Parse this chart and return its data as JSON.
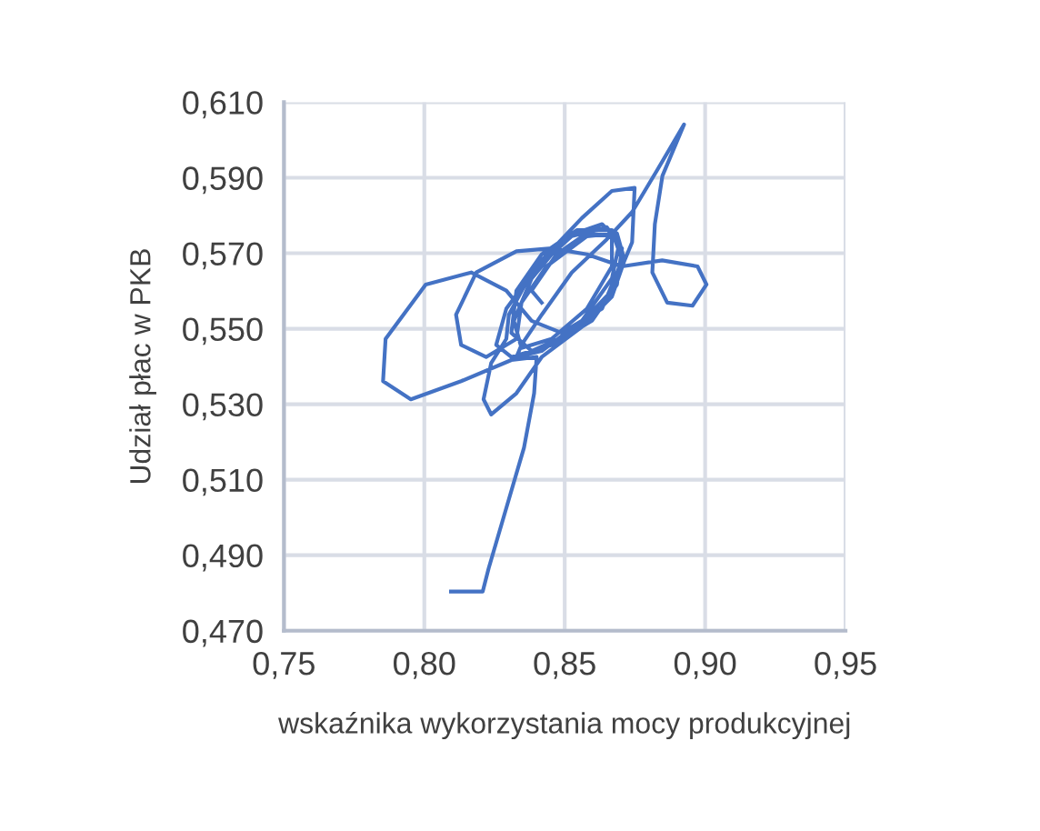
{
  "chart_data": {
    "type": "line",
    "xlabel": "wskaźnika wykorzystania mocy produkcyjnej",
    "ylabel": "Udział płac w PKB",
    "xlim": [
      0.75,
      0.95
    ],
    "ylim": [
      0.47,
      0.61
    ],
    "xticks": [
      {
        "value": 0.75,
        "label": "0,75"
      },
      {
        "value": 0.8,
        "label": "0,80"
      },
      {
        "value": 0.85,
        "label": "0,85"
      },
      {
        "value": 0.9,
        "label": "0,90"
      },
      {
        "value": 0.95,
        "label": "0,95"
      }
    ],
    "yticks": [
      {
        "value": 0.47,
        "label": "0,470"
      },
      {
        "value": 0.49,
        "label": "0,490"
      },
      {
        "value": 0.51,
        "label": "0,510"
      },
      {
        "value": 0.53,
        "label": "0,530"
      },
      {
        "value": 0.55,
        "label": "0,550"
      },
      {
        "value": 0.57,
        "label": "0,570"
      },
      {
        "value": 0.59,
        "label": "0,590"
      },
      {
        "value": 0.61,
        "label": "0,610"
      }
    ],
    "grid": true,
    "legend": false,
    "marker": "none",
    "line_style": "solid",
    "series": [
      {
        "color": "#4472c4",
        "x": [
          0.8095,
          0.8208,
          0.8229,
          0.8292,
          0.8355,
          0.8391,
          0.84,
          0.831,
          0.8131,
          0.7952,
          0.7853,
          0.7862,
          0.8005,
          0.8167,
          0.8292,
          0.8382,
          0.8489,
          0.8633,
          0.8704,
          0.8668,
          0.8543,
          0.8418,
          0.8328,
          0.831,
          0.8382,
          0.8525,
          0.8668,
          0.874,
          0.8749,
          0.8668,
          0.8561,
          0.8418,
          0.8292,
          0.8256,
          0.831,
          0.8453,
          0.8597,
          0.8686,
          0.8704,
          0.865,
          0.8525,
          0.8382,
          0.8301,
          0.8292,
          0.8238,
          0.8211,
          0.8238,
          0.8328,
          0.8418,
          0.8561,
          0.8668,
          0.8713,
          0.8686,
          0.8579,
          0.8435,
          0.8346,
          0.8328,
          0.822,
          0.8131,
          0.8113,
          0.8185,
          0.8328,
          0.8453,
          0.8579,
          0.8704,
          0.8847,
          0.8973,
          0.9005,
          0.8955,
          0.8865,
          0.8812,
          0.8821,
          0.8848,
          0.8925,
          0.883,
          0.874,
          0.865,
          0.8525,
          0.8418,
          0.8346,
          0.8328,
          0.8418,
          0.8561,
          0.8668,
          0.8695,
          0.8633,
          0.8507,
          0.8382,
          0.8319,
          0.8346,
          0.8453,
          0.8579,
          0.8668,
          0.8668,
          0.8579,
          0.8471,
          0.8382,
          0.8418
        ],
        "values": [
          0.4804,
          0.4804,
          0.4865,
          0.5025,
          0.5185,
          0.5329,
          0.5425,
          0.5417,
          0.5361,
          0.5313,
          0.5361,
          0.5473,
          0.5617,
          0.5649,
          0.5601,
          0.5521,
          0.5489,
          0.5553,
          0.5681,
          0.5761,
          0.5761,
          0.5697,
          0.5601,
          0.5489,
          0.5441,
          0.5489,
          0.5601,
          0.5729,
          0.5873,
          0.5865,
          0.5793,
          0.5681,
          0.5553,
          0.5457,
          0.5425,
          0.5457,
          0.5521,
          0.5617,
          0.5713,
          0.5769,
          0.5745,
          0.5649,
          0.5537,
          0.5473,
          0.5409,
          0.5313,
          0.5273,
          0.5329,
          0.5425,
          0.5505,
          0.5585,
          0.5681,
          0.5753,
          0.5745,
          0.5665,
          0.5569,
          0.5473,
          0.5425,
          0.5457,
          0.5537,
          0.5649,
          0.5705,
          0.5713,
          0.5697,
          0.5665,
          0.5681,
          0.5665,
          0.5617,
          0.5561,
          0.5569,
          0.5649,
          0.5777,
          0.5905,
          0.6041,
          0.5921,
          0.5809,
          0.5737,
          0.5649,
          0.5537,
          0.5457,
          0.5425,
          0.5441,
          0.5521,
          0.5633,
          0.5729,
          0.5777,
          0.5745,
          0.5633,
          0.5521,
          0.5449,
          0.5473,
          0.5553,
          0.5665,
          0.5745,
          0.5753,
          0.5697,
          0.5601,
          0.5569
        ]
      }
    ]
  }
}
